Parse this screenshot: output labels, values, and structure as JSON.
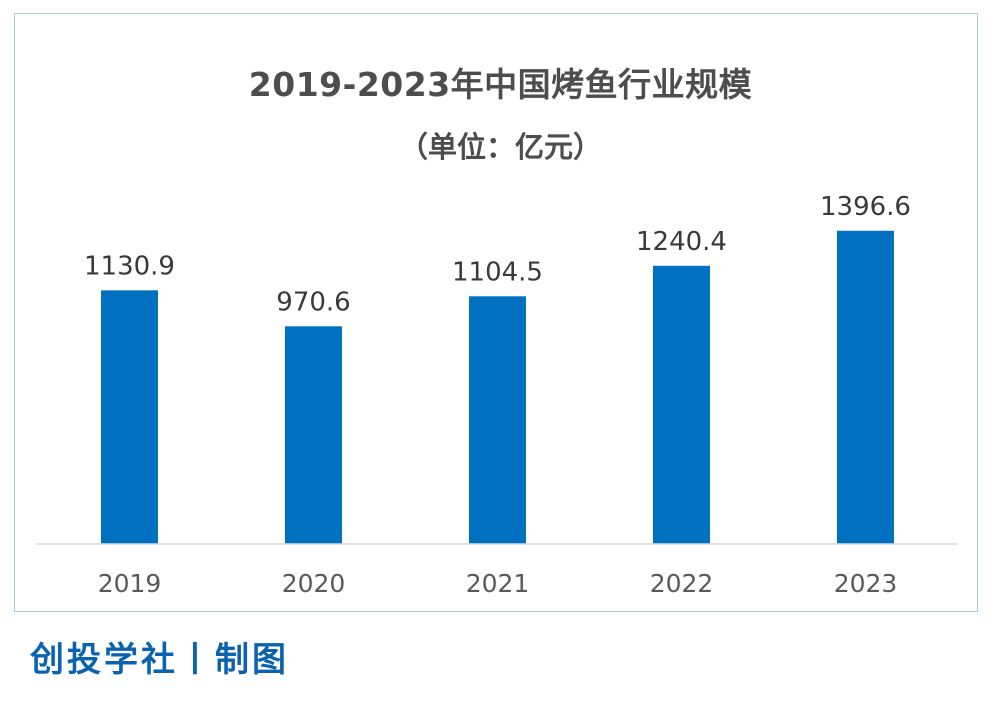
{
  "chart_data": {
    "type": "bar",
    "title": "2019-2023年中国烤鱼行业规模",
    "subtitle": "（单位：亿元）",
    "categories": [
      "2019",
      "2020",
      "2021",
      "2022",
      "2023"
    ],
    "values": [
      1130.9,
      970.6,
      1104.5,
      1240.4,
      1396.6
    ],
    "value_labels": [
      "1130.9",
      "970.6",
      "1104.5",
      "1240.4",
      "1396.6"
    ],
    "xlabel": "",
    "ylabel": "",
    "ylim": [
      0,
      1400
    ],
    "grid": false,
    "bar_color": "#0070c0"
  },
  "footer": {
    "credit": "创投学社丨制图"
  }
}
